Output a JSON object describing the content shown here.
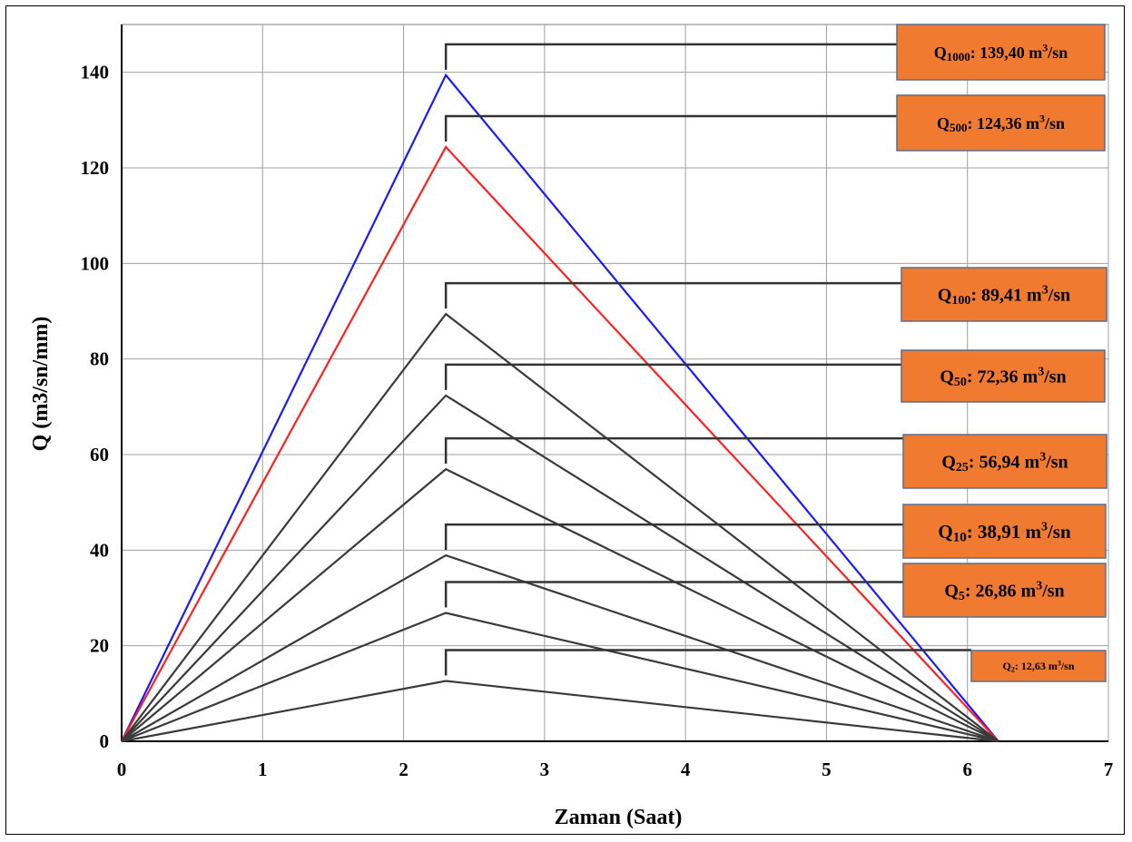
{
  "chart_data": {
    "type": "line",
    "title": "",
    "xlabel": "Zaman (Saat)",
    "ylabel": "Q (m3/sn/mm)",
    "xlim": [
      0,
      7
    ],
    "ylim": [
      0,
      150
    ],
    "xticks": [
      0,
      1,
      2,
      3,
      4,
      5,
      6,
      7
    ],
    "yticks": [
      0,
      20,
      40,
      60,
      80,
      100,
      120,
      140
    ],
    "grid": true,
    "peak_time": 2.3,
    "end_time": 6.22,
    "series": [
      {
        "name": "Q1000",
        "peak": 139.4,
        "color": "#1a1aff",
        "label": {
          "main": "Q",
          "sub": "1000",
          "text": ": 139,40 m",
          "sup": "3",
          "unit": "/sn"
        }
      },
      {
        "name": "Q500",
        "peak": 124.36,
        "color": "#ff2020",
        "label": {
          "main": "Q",
          "sub": "500",
          "text": ": 124,36 m",
          "sup": "3",
          "unit": "/sn"
        }
      },
      {
        "name": "Q100",
        "peak": 89.41,
        "color": "#3a3a3a",
        "label": {
          "main": "Q",
          "sub": "100",
          "text": ": 89,41 m",
          "sup": "3",
          "unit": "/sn"
        }
      },
      {
        "name": "Q50",
        "peak": 72.36,
        "color": "#3a3a3a",
        "label": {
          "main": "Q",
          "sub": "50",
          "text": ": 72,36 m",
          "sup": "3",
          "unit": "/sn"
        }
      },
      {
        "name": "Q25",
        "peak": 56.94,
        "color": "#3a3a3a",
        "label": {
          "main": "Q",
          "sub": "25",
          "text": ": 56,94 m",
          "sup": "3",
          "unit": "/sn"
        }
      },
      {
        "name": "Q10",
        "peak": 38.91,
        "color": "#3a3a3a",
        "label": {
          "main": "Q",
          "sub": "10",
          "text": ": 38,91 m",
          "sup": "3",
          "unit": "/sn"
        }
      },
      {
        "name": "Q5",
        "peak": 26.86,
        "color": "#3a3a3a",
        "label": {
          "main": "Q",
          "sub": "5",
          "text": ": 26,86 m",
          "sup": "3",
          "unit": "/sn"
        }
      },
      {
        "name": "Q2",
        "peak": 12.63,
        "color": "#3a3a3a",
        "label": {
          "main": "Q",
          "sub": "2",
          "text": ": 12,63 m",
          "sup": "3",
          "unit": "/sn"
        }
      }
    ],
    "colors": {
      "box_fill": "#f07a30",
      "box_border": "#5a6e8c",
      "grid": "#a0a0a0",
      "leader": "#333333"
    }
  }
}
